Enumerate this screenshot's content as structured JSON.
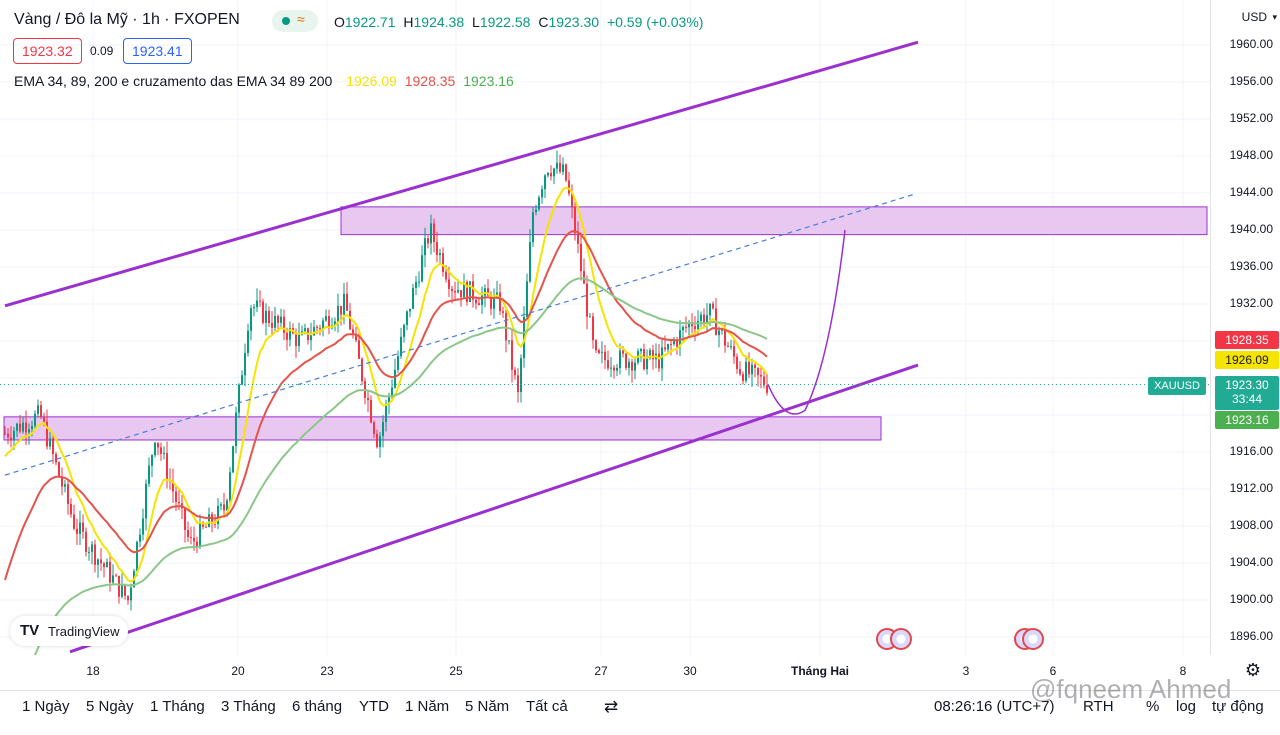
{
  "header": {
    "symbol_title": "Vàng / Đô la Mỹ · 1h · FXOPEN",
    "ohlc": {
      "o_label": "O",
      "o": "1922.71",
      "h_label": "H",
      "h": "1924.38",
      "l_label": "L",
      "l": "1922.58",
      "c_label": "C",
      "c": "1923.30",
      "change": "+0.59 (+0.03%)"
    },
    "bid": "1923.32",
    "spread": "0.09",
    "ask": "1923.41",
    "indicator_label": "EMA 34, 89, 200 e cruzamento das EMA 34 89 200",
    "ema34": "1926.09",
    "ema89": "1928.35",
    "ema200": "1923.16"
  },
  "colors": {
    "up": "#089981",
    "down": "#f23645",
    "ema34": "#f5e400",
    "ema89": "#e5534b",
    "ema200": "#8bc788",
    "channel": "#9b30d0",
    "zone_fill": "#e8c8f0"
  },
  "price_axis": {
    "currency": "USD",
    "labels": [
      "1960.00",
      "1956.00",
      "1952.00",
      "1948.00",
      "1944.00",
      "1940.00",
      "1936.00",
      "1932.00",
      "1916.00",
      "1912.00",
      "1908.00",
      "1904.00",
      "1900.00",
      "1896.00"
    ],
    "tags": {
      "ema89": "1928.35",
      "ema34": "1926.09",
      "last": "1923.30",
      "countdown": "33:44",
      "ema200": "1923.16",
      "symbol": "XAUUSD"
    }
  },
  "time_axis": [
    "18",
    "20",
    "23",
    "25",
    "27",
    "30",
    "Tháng Hai",
    "3",
    "6",
    "8"
  ],
  "ranges": [
    "1 Ngày",
    "5 Ngày",
    "1 Tháng",
    "3 Tháng",
    "6 tháng",
    "YTD",
    "1 Năm",
    "5 Năm",
    "Tất cả"
  ],
  "bottom_right": {
    "time": "08:26:16 (UTC+7)",
    "rth": "RTH",
    "percent": "%",
    "log": "log",
    "auto": "tự động"
  },
  "watermark": "@fqneem Ahmed",
  "logo_text": "TradingView",
  "chart_data": {
    "type": "candlestick",
    "ylim": [
      1894,
      1963
    ],
    "x_ticks": [
      "18",
      "20",
      "23",
      "25",
      "27",
      "30",
      "Tháng Hai",
      "3",
      "6",
      "8"
    ],
    "last_close": 1923.3,
    "ema": [
      {
        "name": "EMA 34",
        "last": 1926.09
      },
      {
        "name": "EMA 89",
        "last": 1928.35
      },
      {
        "name": "EMA 200",
        "last": 1923.16
      }
    ],
    "supply_zone": [
      1939.5,
      1942.5
    ],
    "demand_zone": [
      1917.3,
      1919.8
    ]
  }
}
